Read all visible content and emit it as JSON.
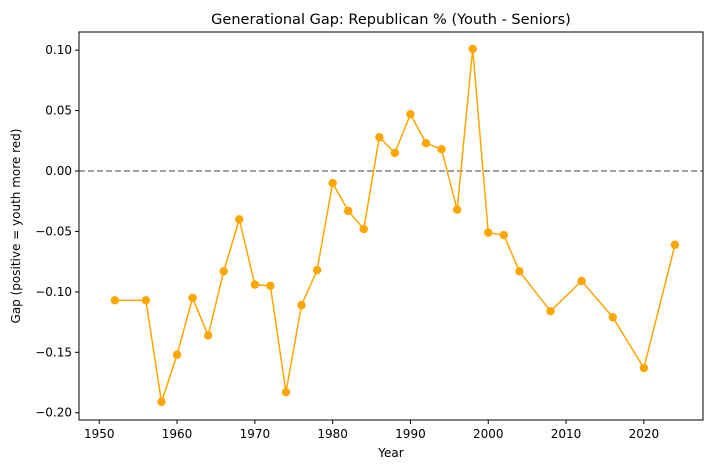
{
  "chart_data": {
    "type": "line",
    "title": "Generational Gap: Republican % (Youth - Seniors)",
    "xlabel": "Year",
    "ylabel": "Gap (positive = youth more red)",
    "xlim": [
      1947.4,
      2027.6
    ],
    "ylim": [
      -0.206,
      0.115
    ],
    "xticks": [
      1950,
      1960,
      1970,
      1980,
      1990,
      2000,
      2010,
      2020
    ],
    "yticks": [
      -0.2,
      -0.15,
      -0.1,
      -0.05,
      0.0,
      0.05,
      0.1
    ],
    "ytick_labels": [
      "−0.20",
      "−0.15",
      "−0.10",
      "−0.05",
      "0.00",
      "0.05",
      "0.10"
    ],
    "grid": false,
    "reference_line": {
      "y": 0.0,
      "style": "dashed",
      "color": "#808080"
    },
    "series": [
      {
        "color": "#FFA500",
        "marker": "circle",
        "x": [
          1952,
          1956,
          1958,
          1960,
          1962,
          1964,
          1966,
          1968,
          1970,
          1972,
          1974,
          1976,
          1978,
          1980,
          1982,
          1984,
          1986,
          1988,
          1990,
          1992,
          1994,
          1996,
          1998,
          2000,
          2002,
          2004,
          2008,
          2012,
          2016,
          2020,
          2024
        ],
        "y": [
          -0.107,
          -0.107,
          -0.191,
          -0.152,
          -0.105,
          -0.136,
          -0.083,
          -0.04,
          -0.094,
          -0.095,
          -0.183,
          -0.111,
          -0.082,
          -0.01,
          -0.033,
          -0.048,
          0.028,
          0.015,
          0.047,
          0.023,
          0.018,
          -0.032,
          0.101,
          -0.051,
          -0.053,
          -0.083,
          -0.116,
          -0.091,
          -0.121,
          -0.163,
          -0.061
        ]
      }
    ]
  }
}
